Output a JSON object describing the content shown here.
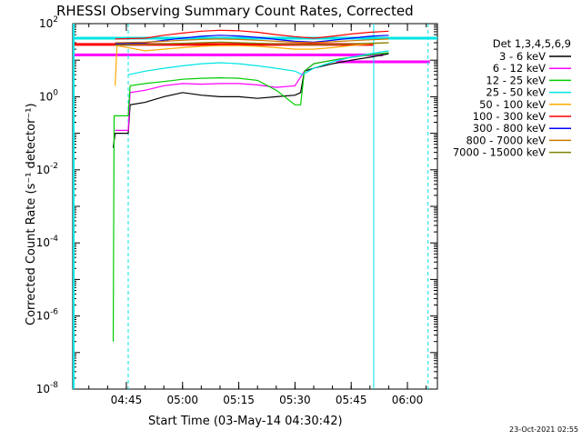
{
  "chart_data": {
    "type": "line",
    "title": "RHESSI Observing Summary Count Rates, Corrected",
    "xlabel": "Start Time (03-May-14 04:30:42)",
    "ylabel": "Corrected Count Rate (s⁻¹ detector⁻¹)",
    "y_scale": "log",
    "ylim_exponent": [
      -8,
      2
    ],
    "y_tick_exponents": [
      2,
      0,
      -2,
      -4,
      -6,
      -8
    ],
    "x_range_minutes": [
      "04:30:42",
      "06:08:00"
    ],
    "x_ticks": [
      "04:45",
      "05:00",
      "05:15",
      "05:30",
      "05:45",
      "06:00"
    ],
    "legend_title": "Det 1,3,4,5,6,9",
    "legend_position": "right",
    "footer_date": "23-Oct-2021 02:55",
    "series": [
      {
        "name": "3 - 6 keV",
        "color": "#000000",
        "points": [
          [
            "04:41:30",
            0.04
          ],
          [
            "04:42:00",
            0.1
          ],
          [
            "04:45:30",
            0.1
          ],
          [
            "04:46:00",
            0.6
          ],
          [
            "04:50:00",
            0.7
          ],
          [
            "04:55:00",
            1.0
          ],
          [
            "05:00:00",
            1.3
          ],
          [
            "05:05:00",
            1.1
          ],
          [
            "05:10:00",
            1.0
          ],
          [
            "05:15:00",
            1.0
          ],
          [
            "05:20:00",
            0.9
          ],
          [
            "05:25:00",
            1.0
          ],
          [
            "05:30:00",
            1.1
          ],
          [
            "05:31:30",
            1.3
          ],
          [
            "05:32:30",
            5
          ],
          [
            "05:35:00",
            6
          ],
          [
            "05:40:00",
            8
          ],
          [
            "05:45:00",
            10
          ],
          [
            "05:50:00",
            12
          ],
          [
            "05:55:00",
            15
          ]
        ]
      },
      {
        "name": "6 - 12 keV",
        "color": "#ff00ff",
        "points": [
          [
            "04:42:00",
            0.12
          ],
          [
            "04:45:30",
            0.12
          ],
          [
            "04:46:00",
            1.3
          ],
          [
            "04:50:00",
            1.5
          ],
          [
            "04:55:00",
            2.0
          ],
          [
            "05:00:00",
            2.3
          ],
          [
            "05:05:00",
            2.2
          ],
          [
            "05:10:00",
            2.3
          ],
          [
            "05:15:00",
            2.3
          ],
          [
            "05:20:00",
            2.1
          ],
          [
            "05:25:00",
            1.8
          ],
          [
            "05:30:00",
            2.0
          ],
          [
            "05:32:30",
            5
          ],
          [
            "05:35:00",
            8
          ],
          [
            "05:40:00",
            10
          ],
          [
            "05:45:00",
            12
          ],
          [
            "05:50:00",
            14
          ],
          [
            "05:55:00",
            16
          ]
        ]
      },
      {
        "name": "12 - 25 keV",
        "color": "#00cc00",
        "points": [
          [
            "04:41:30",
            2e-07
          ],
          [
            "04:41:45",
            0.3
          ],
          [
            "04:42:00",
            0.3
          ],
          [
            "04:45:30",
            0.3
          ],
          [
            "04:46:00",
            2.0
          ],
          [
            "04:50:00",
            2.3
          ],
          [
            "04:55:00",
            2.6
          ],
          [
            "05:00:00",
            3.0
          ],
          [
            "05:05:00",
            3.2
          ],
          [
            "05:10:00",
            3.3
          ],
          [
            "05:15:00",
            3.2
          ],
          [
            "05:20:00",
            2.8
          ],
          [
            "05:25:00",
            1.5
          ],
          [
            "05:30:00",
            0.6
          ],
          [
            "05:31:30",
            0.6
          ],
          [
            "05:32:30",
            5
          ],
          [
            "05:35:00",
            8
          ],
          [
            "05:40:00",
            10
          ],
          [
            "05:45:00",
            12
          ],
          [
            "05:50:00",
            14
          ],
          [
            "05:55:00",
            16
          ]
        ]
      },
      {
        "name": "25 - 50 keV",
        "color": "#00e5e5",
        "points": [
          [
            "04:45:30",
            4
          ],
          [
            "04:50:00",
            5
          ],
          [
            "04:55:00",
            6
          ],
          [
            "05:00:00",
            7
          ],
          [
            "05:05:00",
            8
          ],
          [
            "05:10:00",
            8.5
          ],
          [
            "05:15:00",
            8
          ],
          [
            "05:20:00",
            7
          ],
          [
            "05:25:00",
            6
          ],
          [
            "05:30:00",
            5
          ],
          [
            "05:32:00",
            4
          ],
          [
            "05:35:00",
            6
          ],
          [
            "05:40:00",
            9
          ],
          [
            "05:45:00",
            12
          ],
          [
            "05:50:00",
            15
          ],
          [
            "05:55:00",
            18
          ]
        ]
      },
      {
        "name": "50 - 100 keV",
        "color": "#ffaa00",
        "points": [
          [
            "04:42:00",
            2
          ],
          [
            "04:42:30",
            25
          ],
          [
            "04:50:00",
            18
          ],
          [
            "04:55:00",
            20
          ],
          [
            "05:00:00",
            22
          ],
          [
            "05:05:00",
            24
          ],
          [
            "05:10:00",
            25
          ],
          [
            "05:15:00",
            25
          ],
          [
            "05:20:00",
            24
          ],
          [
            "05:25:00",
            22
          ],
          [
            "05:30:00",
            20
          ],
          [
            "05:35:00",
            20
          ],
          [
            "05:40:00",
            22
          ],
          [
            "05:45:00",
            25
          ],
          [
            "05:50:00",
            28
          ],
          [
            "05:55:00",
            30
          ]
        ]
      },
      {
        "name": "100 - 300 keV",
        "color": "#ff0000",
        "points": [
          [
            "04:42:00",
            38
          ],
          [
            "04:50:00",
            40
          ],
          [
            "04:55:00",
            48
          ],
          [
            "05:00:00",
            55
          ],
          [
            "05:05:00",
            62
          ],
          [
            "05:10:00",
            66
          ],
          [
            "05:15:00",
            64
          ],
          [
            "05:20:00",
            58
          ],
          [
            "05:25:00",
            50
          ],
          [
            "05:30:00",
            44
          ],
          [
            "05:35:00",
            40
          ],
          [
            "05:40:00",
            45
          ],
          [
            "05:45:00",
            52
          ],
          [
            "05:50:00",
            58
          ],
          [
            "05:55:00",
            62
          ]
        ]
      },
      {
        "name": "300 - 800 keV",
        "color": "#0000ff",
        "points": [
          [
            "04:42:00",
            28
          ],
          [
            "04:50:00",
            30
          ],
          [
            "04:55:00",
            35
          ],
          [
            "05:00:00",
            40
          ],
          [
            "05:05:00",
            45
          ],
          [
            "05:10:00",
            48
          ],
          [
            "05:15:00",
            46
          ],
          [
            "05:20:00",
            42
          ],
          [
            "05:25:00",
            37
          ],
          [
            "05:30:00",
            33
          ],
          [
            "05:35:00",
            31
          ],
          [
            "05:40:00",
            35
          ],
          [
            "05:45:00",
            40
          ],
          [
            "05:50:00",
            45
          ],
          [
            "05:55:00",
            48
          ]
        ]
      },
      {
        "name": "800 - 7000 keV",
        "color": "#cc7700",
        "points": [
          [
            "04:42:00",
            30
          ],
          [
            "04:50:00",
            31
          ],
          [
            "04:55:00",
            33
          ],
          [
            "05:00:00",
            35
          ],
          [
            "05:05:00",
            37
          ],
          [
            "05:10:00",
            38
          ],
          [
            "05:15:00",
            37
          ],
          [
            "05:20:00",
            35
          ],
          [
            "05:25:00",
            33
          ],
          [
            "05:30:00",
            31
          ],
          [
            "05:35:00",
            30
          ],
          [
            "05:40:00",
            32
          ],
          [
            "05:45:00",
            34
          ],
          [
            "05:50:00",
            36
          ],
          [
            "05:55:00",
            38
          ]
        ]
      },
      {
        "name": "7000 - 15000 keV",
        "color": "#808000",
        "points": [
          [
            "04:42:00",
            26
          ],
          [
            "04:50:00",
            27
          ],
          [
            "04:55:00",
            28
          ],
          [
            "05:00:00",
            29
          ],
          [
            "05:05:00",
            30
          ],
          [
            "05:10:00",
            31
          ],
          [
            "05:15:00",
            30
          ],
          [
            "05:20:00",
            29
          ],
          [
            "05:25:00",
            28
          ],
          [
            "05:30:00",
            27
          ],
          [
            "05:35:00",
            26
          ],
          [
            "05:40:00",
            27
          ],
          [
            "05:45:00",
            28
          ],
          [
            "05:50:00",
            29
          ],
          [
            "05:55:00",
            30
          ]
        ]
      }
    ],
    "flag_bars": [
      {
        "color": "#00e5e5",
        "x_from": "04:30:42",
        "x_to": "06:08:00",
        "y": 40
      },
      {
        "color": "#ff0000",
        "x_from": "04:30:42",
        "x_to": "05:51:00",
        "y": 27
      },
      {
        "color": "#ff00ff",
        "x_from": "04:30:42",
        "x_to": "05:53:30",
        "y": 14
      },
      {
        "color": "#ff00ff",
        "x_from": "05:41:00",
        "x_to": "06:06:00",
        "y": 9
      }
    ],
    "vertical_markers": [
      {
        "color": "#00e5e5",
        "style": "dashed",
        "x": "04:45:30"
      },
      {
        "color": "#00e5e5",
        "style": "solid",
        "x": "05:51:00"
      },
      {
        "color": "#00e5e5",
        "style": "dashed",
        "x": "06:05:30"
      }
    ]
  }
}
